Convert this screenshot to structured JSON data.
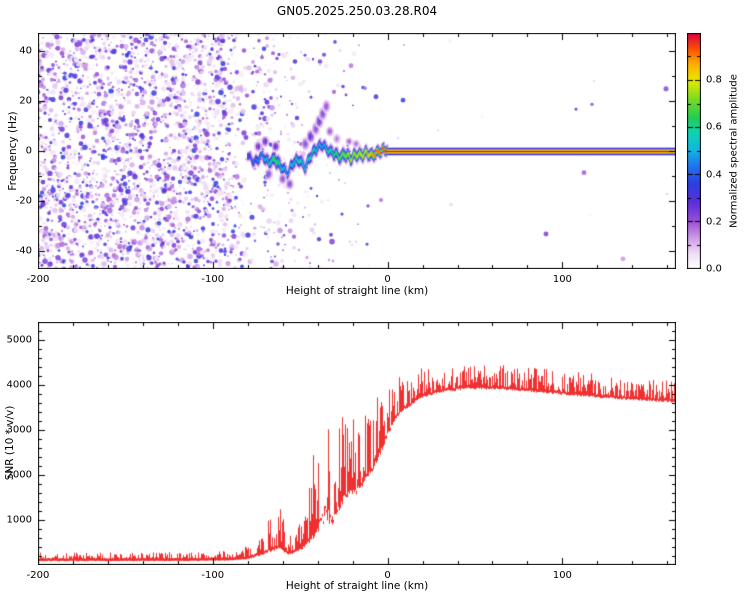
{
  "figure": {
    "title": "GN05.2025.250.03.28.R04",
    "background": "#ffffff"
  },
  "chart_data": [
    {
      "type": "heatmap",
      "name": "spectrogram",
      "xlabel": "Height of straight line (km)",
      "ylabel": "Frequency (Hz)",
      "xlim": [
        -200,
        165
      ],
      "ylim": [
        -47,
        47
      ],
      "xticks": [
        -200,
        -100,
        0,
        100
      ],
      "yticks": [
        -40,
        -20,
        0,
        20,
        40
      ],
      "grid": false,
      "colorbar": {
        "label": "Normalized spectral amplitude",
        "tick_labels": [
          "0.0",
          "0.2",
          "0.4",
          "0.6",
          "0.8"
        ],
        "tick_values": [
          0,
          0.2,
          0.4,
          0.6,
          0.8
        ],
        "vmin": 0,
        "vmax": 1,
        "stops": [
          [
            0,
            "#ffffff"
          ],
          [
            0.06,
            "#f0e0f5"
          ],
          [
            0.12,
            "#d3a6e8"
          ],
          [
            0.2,
            "#9b4fd6"
          ],
          [
            0.28,
            "#5b2fd9"
          ],
          [
            0.36,
            "#2b3fe0"
          ],
          [
            0.44,
            "#2277ee"
          ],
          [
            0.5,
            "#11b4e4"
          ],
          [
            0.58,
            "#0fd4b0"
          ],
          [
            0.64,
            "#22cc55"
          ],
          [
            0.72,
            "#77dd22"
          ],
          [
            0.8,
            "#e8e800"
          ],
          [
            0.87,
            "#ffae00"
          ],
          [
            0.93,
            "#ff5500"
          ],
          [
            1,
            "#e00040"
          ]
        ]
      },
      "noise_density_keypoints": [
        [
          -200,
          1
        ],
        [
          -93,
          1
        ],
        [
          -87,
          0.6
        ],
        [
          -82,
          0.32
        ],
        [
          -79,
          0.07
        ],
        [
          -76,
          0.4
        ],
        [
          -70,
          0.45
        ],
        [
          -64,
          0.3
        ],
        [
          -58,
          0.25
        ],
        [
          -52,
          0.18
        ],
        [
          -46,
          0.14
        ],
        [
          -40,
          0.12
        ],
        [
          -34,
          0.09
        ],
        [
          -28,
          0.06
        ],
        [
          -20,
          0.05
        ],
        [
          -12,
          0.03
        ],
        [
          -2,
          0.015
        ],
        [
          5,
          0.006
        ],
        [
          165,
          0.004
        ]
      ],
      "trace_keypoints": [
        [
          -80,
          -2,
          0.4,
          2
        ],
        [
          -76,
          -4,
          0.45,
          2.2
        ],
        [
          -72,
          -1,
          0.5,
          2.5
        ],
        [
          -68,
          -5,
          0.55,
          2.5
        ],
        [
          -64,
          -3,
          0.7,
          3
        ],
        [
          -60,
          -6,
          0.55,
          2.6
        ],
        [
          -57,
          -9,
          0.5,
          2.2
        ],
        [
          -54,
          -5,
          0.55,
          2.6
        ],
        [
          -50,
          -3,
          0.6,
          2.6
        ],
        [
          -47,
          -6,
          0.55,
          2.4
        ],
        [
          -44,
          -2,
          0.6,
          2.6
        ],
        [
          -40,
          1,
          0.55,
          2.4
        ],
        [
          -37,
          3,
          0.5,
          2.2
        ],
        [
          -34,
          1,
          0.6,
          2.4
        ],
        [
          -30,
          -1,
          0.65,
          2.4
        ],
        [
          -27,
          -3,
          0.7,
          2.6
        ],
        [
          -24,
          -1,
          0.75,
          2.6
        ],
        [
          -21,
          -2,
          0.8,
          2.4
        ],
        [
          -18,
          -1,
          0.78,
          2.4
        ],
        [
          -15,
          -2,
          0.85,
          2.4
        ],
        [
          -12,
          -1,
          0.82,
          2.4
        ],
        [
          -9,
          -1,
          0.9,
          2.3
        ],
        [
          -6,
          0,
          0.95,
          2.2
        ],
        [
          -3,
          0,
          0.97,
          2.1
        ],
        [
          0,
          0,
          1,
          2
        ]
      ],
      "carrier": {
        "x_start": 0,
        "x_end": 165,
        "y": 0,
        "value": 1,
        "halfwidth_hz": 1.5
      },
      "extra_blobs": [
        [
          -47,
          3,
          0.3,
          3
        ],
        [
          -44,
          6,
          0.32,
          3
        ],
        [
          -41,
          9,
          0.3,
          3
        ],
        [
          -39,
          12,
          0.32,
          3
        ],
        [
          -37,
          15,
          0.3,
          3
        ],
        [
          -35,
          18,
          0.25,
          3
        ],
        [
          -56,
          -13,
          0.3,
          2.5
        ],
        [
          -60,
          -11,
          0.28,
          2.5
        ],
        [
          -68,
          -9,
          0.3,
          2.5
        ],
        [
          -33,
          8,
          0.22,
          2.5
        ],
        [
          -29,
          5,
          0.2,
          2.5
        ],
        [
          -22,
          4,
          0.2,
          2
        ],
        [
          -18,
          3,
          0.22,
          2
        ],
        [
          -70,
          4,
          0.3,
          2.5
        ],
        [
          -74,
          2,
          0.28,
          2.5
        ],
        [
          -64,
          2,
          0.3,
          2.5
        ]
      ]
    },
    {
      "type": "line",
      "name": "snr",
      "xlabel": "Height of straight line (km)",
      "ylabel": "SNR (10 * v/v)",
      "xlim": [
        -200,
        165
      ],
      "ylim": [
        0,
        5400
      ],
      "xticks": [
        -200,
        -100,
        0,
        100
      ],
      "yticks": [
        1000,
        2000,
        3000,
        4000,
        5000
      ],
      "grid": false,
      "line_color": "#f03030",
      "envelope_keypoints": [
        [
          -200,
          80,
          280
        ],
        [
          -150,
          80,
          285
        ],
        [
          -110,
          85,
          295
        ],
        [
          -90,
          95,
          310
        ],
        [
          -83,
          110,
          360
        ],
        [
          -77,
          150,
          520
        ],
        [
          -71,
          220,
          780
        ],
        [
          -66,
          300,
          1250
        ],
        [
          -63,
          330,
          1400
        ],
        [
          -60,
          280,
          1150
        ],
        [
          -57,
          220,
          680
        ],
        [
          -53,
          260,
          750
        ],
        [
          -49,
          320,
          1050
        ],
        [
          -46,
          420,
          1500
        ],
        [
          -43,
          520,
          2300
        ],
        [
          -40,
          700,
          3100
        ],
        [
          -37,
          850,
          4600
        ],
        [
          -35,
          950,
          5350
        ],
        [
          -33,
          900,
          4700
        ],
        [
          -31,
          850,
          3100
        ],
        [
          -29,
          1050,
          4800
        ],
        [
          -27,
          1250,
          3400
        ],
        [
          -24,
          1450,
          3550
        ],
        [
          -21,
          1550,
          3450
        ],
        [
          -18,
          1550,
          3250
        ],
        [
          -15,
          1700,
          3350
        ],
        [
          -12,
          1850,
          3450
        ],
        [
          -9,
          2050,
          3550
        ],
        [
          -6,
          2250,
          3750
        ],
        [
          -3,
          2550,
          3850
        ],
        [
          0,
          2850,
          3950
        ],
        [
          5,
          3250,
          4150
        ],
        [
          10,
          3450,
          4250
        ],
        [
          20,
          3700,
          4380
        ],
        [
          30,
          3820,
          4430
        ],
        [
          45,
          3900,
          4470
        ],
        [
          60,
          3900,
          4460
        ],
        [
          75,
          3860,
          4420
        ],
        [
          90,
          3810,
          4370
        ],
        [
          105,
          3760,
          4320
        ],
        [
          120,
          3710,
          4270
        ],
        [
          140,
          3660,
          4210
        ],
        [
          165,
          3600,
          4150
        ]
      ]
    }
  ]
}
